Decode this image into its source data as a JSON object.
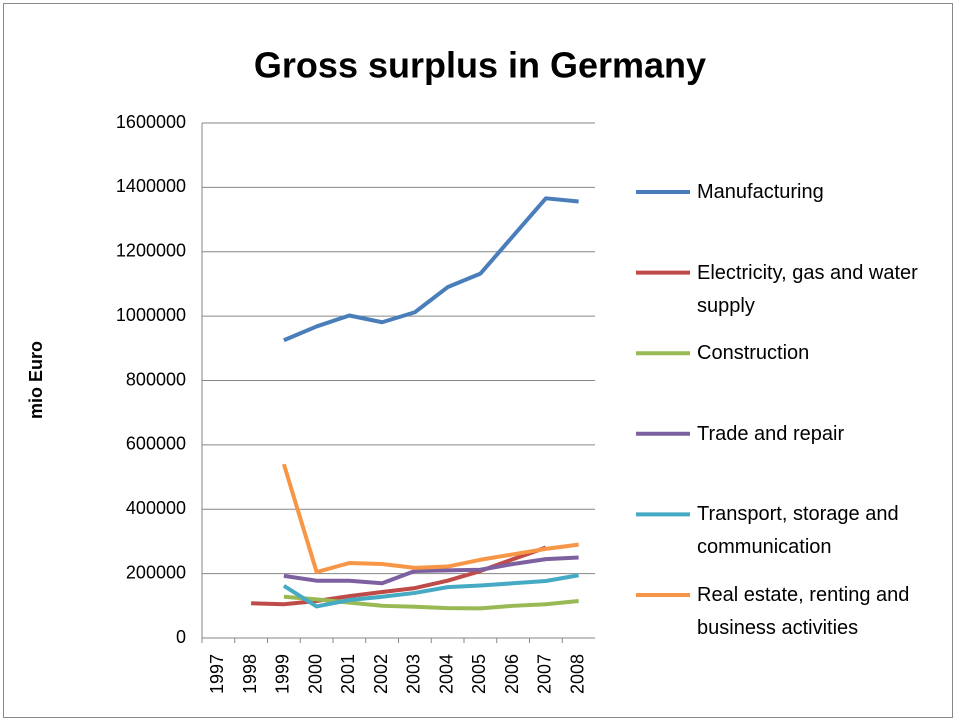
{
  "chart_data": {
    "type": "line",
    "title": "Gross surplus in Germany",
    "y_label": "mio Euro",
    "categories": [
      "1997",
      "1998",
      "1999",
      "2000",
      "2001",
      "2002",
      "2003",
      "2004",
      "2005",
      "2006",
      "2007",
      "2008"
    ],
    "series": [
      {
        "name": "Manufacturing",
        "color": "#4a7ebb",
        "values": [
          null,
          null,
          925000,
          968000,
          1002000,
          981000,
          1012000,
          1090000,
          1132000,
          1249000,
          1366000,
          1356000
        ]
      },
      {
        "name": "Electricity, gas and water supply",
        "color": "#be4b48",
        "values": [
          null,
          108000,
          105000,
          115000,
          130000,
          143000,
          155000,
          178000,
          208000,
          245000,
          281000,
          null
        ]
      },
      {
        "name": "Construction",
        "color": "#98b954",
        "values": [
          null,
          null,
          128000,
          120000,
          110000,
          100000,
          97000,
          93000,
          92000,
          100000,
          105000,
          115000
        ]
      },
      {
        "name": "Trade and repair",
        "color": "#7d60a0",
        "values": [
          null,
          null,
          193000,
          178000,
          178000,
          170000,
          208000,
          210000,
          212000,
          230000,
          245000,
          250000
        ]
      },
      {
        "name": "Transport, storage and communication",
        "color": "#46aac5",
        "values": [
          null,
          null,
          162000,
          98000,
          118000,
          128000,
          140000,
          158000,
          163000,
          170000,
          177000,
          195000
        ]
      },
      {
        "name": "Real estate, renting and business activities",
        "color": "#f79646",
        "values": [
          null,
          null,
          540000,
          205000,
          233000,
          230000,
          218000,
          222000,
          243000,
          260000,
          277000,
          290000
        ]
      }
    ],
    "ylim": [
      0,
      1600000
    ],
    "yticks": [
      0,
      200000,
      400000,
      600000,
      800000,
      1000000,
      1200000,
      1400000,
      1600000
    ],
    "grid": true
  }
}
